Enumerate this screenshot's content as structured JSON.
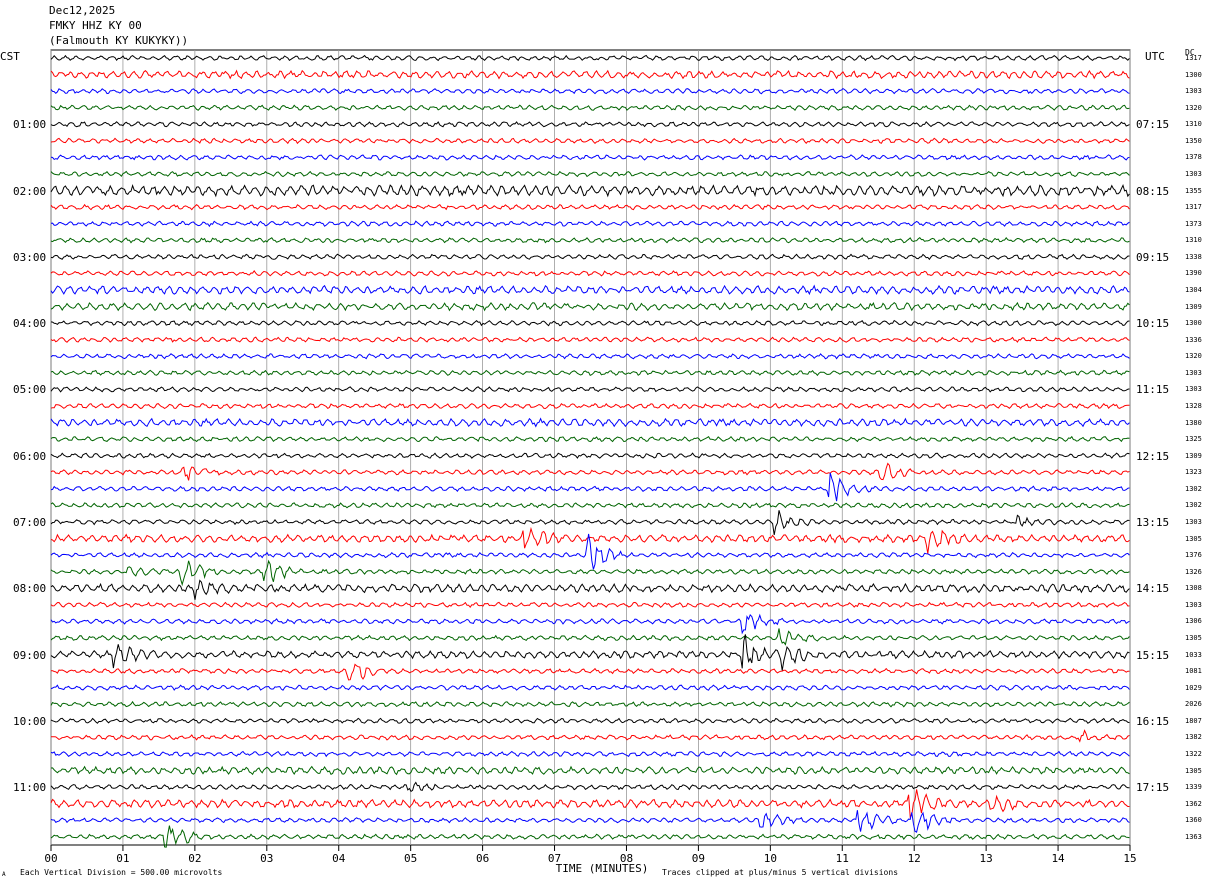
{
  "header": {
    "date": "Dec12,2025",
    "station": "FMKY HHZ KY 00",
    "location": "(Falmouth KY KUKYKY))"
  },
  "corner": {
    "left": "CST",
    "right": "UTC",
    "dc": "DC"
  },
  "footer": {
    "scale": "Each Vertical Division =  500.00 microvolts",
    "clip": "Traces clipped at plus/minus 5 vertical divisions",
    "mark": "A"
  },
  "chart_data": {
    "type": "line",
    "title": "FMKY HHZ KY 00",
    "xlabel": "TIME (MINUTES)",
    "xlim": [
      0,
      15
    ],
    "x_ticks": [
      "00",
      "01",
      "02",
      "03",
      "04",
      "05",
      "06",
      "07",
      "08",
      "09",
      "10",
      "11",
      "12",
      "13",
      "14",
      "15"
    ],
    "left_time_labels": [
      "01:00",
      "02:00",
      "03:00",
      "04:00",
      "05:00",
      "06:00",
      "07:00",
      "08:00",
      "09:00",
      "10:00",
      "11:00"
    ],
    "right_time_labels": [
      "07:15",
      "08:15",
      "09:15",
      "10:15",
      "11:15",
      "12:15",
      "13:15",
      "14:15",
      "15:15",
      "16:15",
      "17:15"
    ],
    "trace_minutes": 15,
    "traces_per_hour": 4,
    "trace_count": 48,
    "trace_colors": [
      "#000000",
      "#ff0000",
      "#0000ff",
      "#006400"
    ],
    "dc_offsets": [
      "1317",
      "1300",
      "1303",
      "1320",
      "1310",
      "1350",
      "1378",
      "1303",
      "1355",
      "1317",
      "1373",
      "1310",
      "1338",
      "1390",
      "1304",
      "1309",
      "1300",
      "1336",
      "1320",
      "1303",
      "1303",
      "1328",
      "1380",
      "1325",
      "1309",
      "1323",
      "1302",
      "1302",
      "1303",
      "1305",
      "1376",
      "1326",
      "1308",
      "1303",
      "1306",
      "1305",
      "1033",
      "1081",
      "1029",
      "2026",
      "1807",
      "1382",
      "1322",
      "1305",
      "1339",
      "1362",
      "1360",
      "1363"
    ],
    "events": [
      {
        "trace": 25,
        "minute": 1.8,
        "amp": 2.0
      },
      {
        "trace": 25,
        "minute": 11.5,
        "amp": 1.8
      },
      {
        "trace": 26,
        "minute": 10.8,
        "amp": 3.0
      },
      {
        "trace": 28,
        "minute": 10.05,
        "amp": 2.0
      },
      {
        "trace": 28,
        "minute": 13.4,
        "amp": 1.0
      },
      {
        "trace": 29,
        "minute": 6.55,
        "amp": 3.0
      },
      {
        "trace": 29,
        "minute": 12.15,
        "amp": 3.0
      },
      {
        "trace": 30,
        "minute": 7.45,
        "amp": 3.5
      },
      {
        "trace": 31,
        "minute": 1.8,
        "amp": 2.8
      },
      {
        "trace": 31,
        "minute": 1.05,
        "amp": 1.5
      },
      {
        "trace": 31,
        "minute": 2.95,
        "amp": 2.5
      },
      {
        "trace": 32,
        "minute": 2.0,
        "amp": 1.5
      },
      {
        "trace": 34,
        "minute": 9.6,
        "amp": 2.0
      },
      {
        "trace": 35,
        "minute": 10.1,
        "amp": 1.5
      },
      {
        "trace": 36,
        "minute": 0.85,
        "amp": 2.5
      },
      {
        "trace": 36,
        "minute": 9.6,
        "amp": 3.2
      },
      {
        "trace": 36,
        "minute": 10.15,
        "amp": 2.2
      },
      {
        "trace": 37,
        "minute": 4.1,
        "amp": 3.2
      },
      {
        "trace": 41,
        "minute": 14.3,
        "amp": 1.3
      },
      {
        "trace": 44,
        "minute": 4.95,
        "amp": 1.2
      },
      {
        "trace": 45,
        "minute": 11.9,
        "amp": 3.5
      },
      {
        "trace": 45,
        "minute": 13.05,
        "amp": 1.8
      },
      {
        "trace": 46,
        "minute": 11.2,
        "amp": 2.5
      },
      {
        "trace": 46,
        "minute": 11.95,
        "amp": 3.2
      },
      {
        "trace": 46,
        "minute": 9.85,
        "amp": 1.5
      },
      {
        "trace": 47,
        "minute": 1.55,
        "amp": 3.5
      }
    ]
  }
}
